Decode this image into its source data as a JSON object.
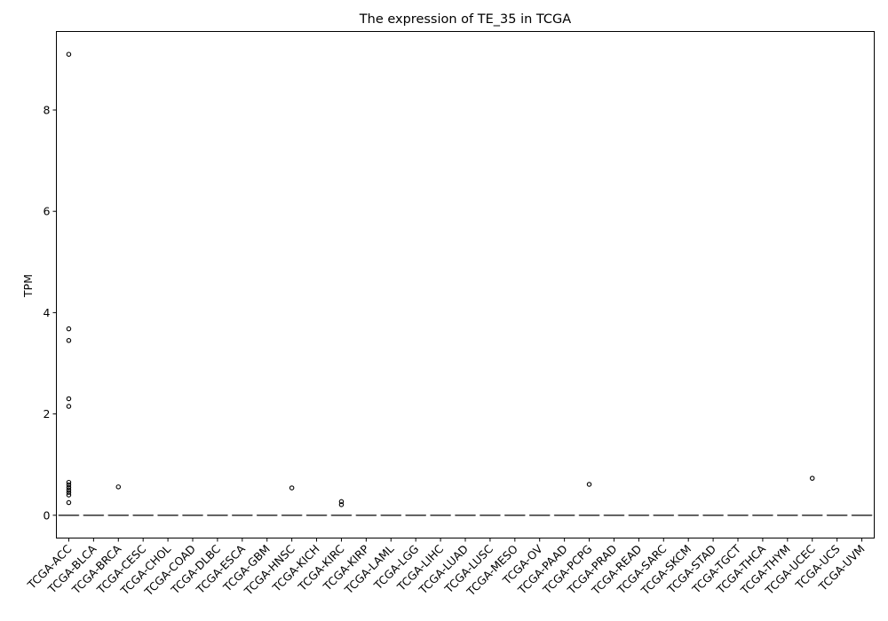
{
  "chart_data": {
    "type": "box",
    "title": "The expression of TE_35 in TCGA",
    "xlabel": "",
    "ylabel": "TPM",
    "ylim": [
      -0.45,
      9.55
    ],
    "yticks": [
      0,
      2,
      4,
      6,
      8
    ],
    "grid": false,
    "categories": [
      "TCGA-ACC",
      "TCGA-BLCA",
      "TCGA-BRCA",
      "TCGA-CESC",
      "TCGA-CHOL",
      "TCGA-COAD",
      "TCGA-DLBC",
      "TCGA-ESCA",
      "TCGA-GBM",
      "TCGA-HNSC",
      "TCGA-KICH",
      "TCGA-KIRC",
      "TCGA-KIRP",
      "TCGA-LAML",
      "TCGA-LGG",
      "TCGA-LIHC",
      "TCGA-LUAD",
      "TCGA-LUSC",
      "TCGA-MESO",
      "TCGA-OV",
      "TCGA-PAAD",
      "TCGA-PCPG",
      "TCGA-PRAD",
      "TCGA-READ",
      "TCGA-SARC",
      "TCGA-SKCM",
      "TCGA-STAD",
      "TCGA-TGCT",
      "TCGA-THCA",
      "TCGA-THYM",
      "TCGA-UCEC",
      "TCGA-UCS",
      "TCGA-UVM"
    ],
    "boxes": [
      {
        "q1": 0,
        "median": 0,
        "q3": 0,
        "whisker_low": 0,
        "whisker_high": 0,
        "outliers": [
          9.1,
          3.68,
          3.45,
          2.3,
          2.15,
          0.65,
          0.6,
          0.55,
          0.5,
          0.45,
          0.4,
          0.25
        ]
      },
      {
        "q1": 0,
        "median": 0,
        "q3": 0,
        "whisker_low": 0,
        "whisker_high": 0,
        "outliers": []
      },
      {
        "q1": 0,
        "median": 0,
        "q3": 0,
        "whisker_low": 0,
        "whisker_high": 0,
        "outliers": [
          0.56
        ]
      },
      {
        "q1": 0,
        "median": 0,
        "q3": 0,
        "whisker_low": 0,
        "whisker_high": 0,
        "outliers": []
      },
      {
        "q1": 0,
        "median": 0,
        "q3": 0,
        "whisker_low": 0,
        "whisker_high": 0,
        "outliers": []
      },
      {
        "q1": 0,
        "median": 0,
        "q3": 0,
        "whisker_low": 0,
        "whisker_high": 0,
        "outliers": []
      },
      {
        "q1": 0,
        "median": 0,
        "q3": 0,
        "whisker_low": 0,
        "whisker_high": 0,
        "outliers": []
      },
      {
        "q1": 0,
        "median": 0,
        "q3": 0,
        "whisker_low": 0,
        "whisker_high": 0,
        "outliers": []
      },
      {
        "q1": 0,
        "median": 0,
        "q3": 0,
        "whisker_low": 0,
        "whisker_high": 0,
        "outliers": []
      },
      {
        "q1": 0,
        "median": 0,
        "q3": 0,
        "whisker_low": 0,
        "whisker_high": 0,
        "outliers": [
          0.54
        ]
      },
      {
        "q1": 0,
        "median": 0,
        "q3": 0,
        "whisker_low": 0,
        "whisker_high": 0,
        "outliers": []
      },
      {
        "q1": 0,
        "median": 0,
        "q3": 0,
        "whisker_low": 0,
        "whisker_high": 0,
        "outliers": [
          0.27,
          0.21
        ]
      },
      {
        "q1": 0,
        "median": 0,
        "q3": 0,
        "whisker_low": 0,
        "whisker_high": 0,
        "outliers": []
      },
      {
        "q1": 0,
        "median": 0,
        "q3": 0,
        "whisker_low": 0,
        "whisker_high": 0,
        "outliers": []
      },
      {
        "q1": 0,
        "median": 0,
        "q3": 0,
        "whisker_low": 0,
        "whisker_high": 0,
        "outliers": []
      },
      {
        "q1": 0,
        "median": 0,
        "q3": 0,
        "whisker_low": 0,
        "whisker_high": 0,
        "outliers": []
      },
      {
        "q1": 0,
        "median": 0,
        "q3": 0,
        "whisker_low": 0,
        "whisker_high": 0,
        "outliers": []
      },
      {
        "q1": 0,
        "median": 0,
        "q3": 0,
        "whisker_low": 0,
        "whisker_high": 0,
        "outliers": []
      },
      {
        "q1": 0,
        "median": 0,
        "q3": 0,
        "whisker_low": 0,
        "whisker_high": 0,
        "outliers": []
      },
      {
        "q1": 0,
        "median": 0,
        "q3": 0,
        "whisker_low": 0,
        "whisker_high": 0,
        "outliers": []
      },
      {
        "q1": 0,
        "median": 0,
        "q3": 0,
        "whisker_low": 0,
        "whisker_high": 0,
        "outliers": []
      },
      {
        "q1": 0,
        "median": 0,
        "q3": 0,
        "whisker_low": 0,
        "whisker_high": 0,
        "outliers": [
          0.61
        ]
      },
      {
        "q1": 0,
        "median": 0,
        "q3": 0,
        "whisker_low": 0,
        "whisker_high": 0,
        "outliers": []
      },
      {
        "q1": 0,
        "median": 0,
        "q3": 0,
        "whisker_low": 0,
        "whisker_high": 0,
        "outliers": []
      },
      {
        "q1": 0,
        "median": 0,
        "q3": 0,
        "whisker_low": 0,
        "whisker_high": 0,
        "outliers": []
      },
      {
        "q1": 0,
        "median": 0,
        "q3": 0,
        "whisker_low": 0,
        "whisker_high": 0,
        "outliers": []
      },
      {
        "q1": 0,
        "median": 0,
        "q3": 0,
        "whisker_low": 0,
        "whisker_high": 0,
        "outliers": []
      },
      {
        "q1": 0,
        "median": 0,
        "q3": 0,
        "whisker_low": 0,
        "whisker_high": 0,
        "outliers": []
      },
      {
        "q1": 0,
        "median": 0,
        "q3": 0,
        "whisker_low": 0,
        "whisker_high": 0,
        "outliers": []
      },
      {
        "q1": 0,
        "median": 0,
        "q3": 0,
        "whisker_low": 0,
        "whisker_high": 0,
        "outliers": []
      },
      {
        "q1": 0,
        "median": 0,
        "q3": 0,
        "whisker_low": 0,
        "whisker_high": 0,
        "outliers": [
          0.73
        ]
      },
      {
        "q1": 0,
        "median": 0,
        "q3": 0,
        "whisker_low": 0,
        "whisker_high": 0,
        "outliers": []
      },
      {
        "q1": 0,
        "median": 0,
        "q3": 0,
        "whisker_low": 0,
        "whisker_high": 0,
        "outliers": []
      }
    ],
    "colors": {
      "box_line": "#3f3f3f",
      "outlier": "#000000",
      "axis": "#000000"
    }
  }
}
